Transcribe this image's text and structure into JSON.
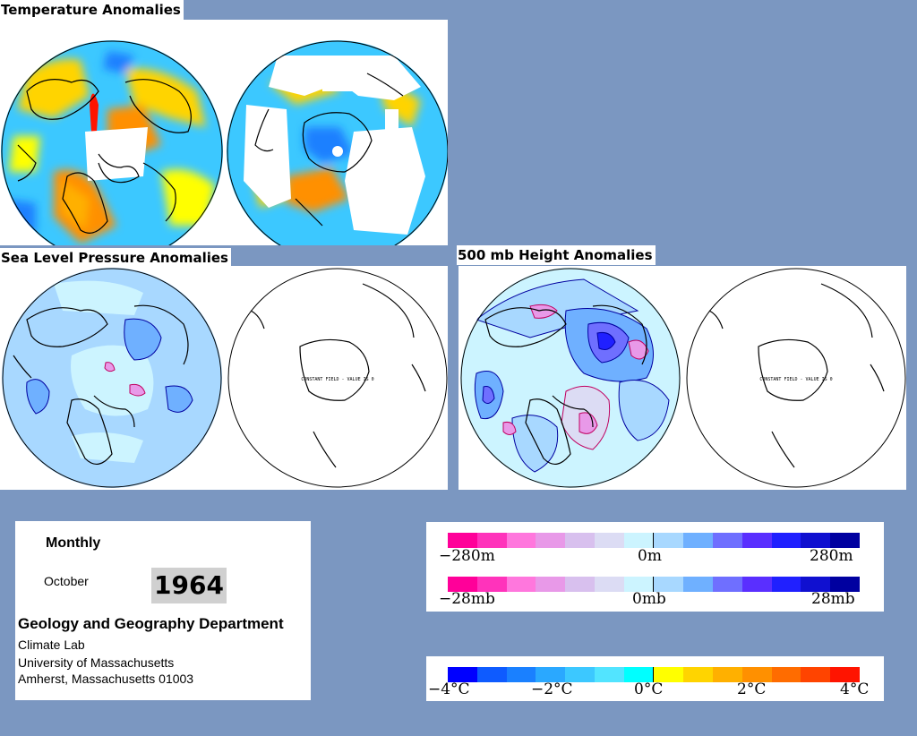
{
  "panels": {
    "temperature": {
      "title": "Temperature Anomalies"
    },
    "slp": {
      "title": "Sea Level Pressure Anomalies",
      "constant_field_note": "CONSTANT FIELD - VALUE IS 0"
    },
    "height500": {
      "title": "500 mb Height Anomalies",
      "constant_field_note": "CONSTANT FIELD - VALUE IS 0"
    }
  },
  "info": {
    "period": "Monthly",
    "month": "October",
    "year": "1964",
    "department": "Geology and Geography Department",
    "lab": "Climate Lab",
    "university": "University of Massachusetts",
    "address": "Amherst, Massachusetts 01003"
  },
  "legends": {
    "height": {
      "left": "−280m",
      "center": "0m",
      "right": "280m"
    },
    "pressure": {
      "left": "−28mb",
      "center": "0mb",
      "right": "28mb"
    },
    "temperature": [
      "−4°C",
      "−2°C",
      "0°C",
      "2°C",
      "4°C"
    ]
  },
  "colors": {
    "background": "#7b97c1",
    "anomaly_scale": [
      "#ff0099",
      "#ff33bb",
      "#ff77dd",
      "#e899e8",
      "#d8c0ee",
      "#dcdcf4",
      "#ccf4ff",
      "#a8d8ff",
      "#6fb0ff",
      "#6f6fff",
      "#5a2fff",
      "#2020ff",
      "#1010d0",
      "#0000a0"
    ],
    "temperature_scale": [
      "#0000ff",
      "#0e5bff",
      "#1a80ff",
      "#2aa8ff",
      "#3cc8ff",
      "#52e4ff",
      "#00ffff",
      "#ffff00",
      "#ffd400",
      "#ffb000",
      "#ff9000",
      "#ff6c00",
      "#ff4400",
      "#ff1400"
    ]
  }
}
